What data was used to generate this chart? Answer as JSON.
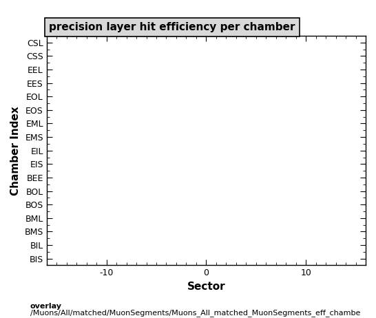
{
  "title": "precision layer hit efficiency per chamber",
  "xlabel": "Sector",
  "ylabel": "Chamber Index",
  "y_labels": [
    "CSL",
    "CSS",
    "EEL",
    "EES",
    "EOL",
    "EOS",
    "EML",
    "EMS",
    "EIL",
    "EIS",
    "BEE",
    "BOL",
    "BOS",
    "BML",
    "BMS",
    "BIL",
    "BIS"
  ],
  "xlim": [
    -16,
    16
  ],
  "x_ticks": [
    -10,
    0,
    10
  ],
  "footer_line1": "overlay",
  "footer_line2": "/Muons/All/matched/MuonSegments/Muons_All_matched_MuonSegments_eff_chambe",
  "title_fontsize": 11,
  "axis_label_fontsize": 11,
  "tick_label_fontsize": 9,
  "footer_fontsize": 8,
  "bg_color": "#ffffff",
  "plot_bg_color": "#ffffff",
  "title_box_color": "#d8d8d8"
}
